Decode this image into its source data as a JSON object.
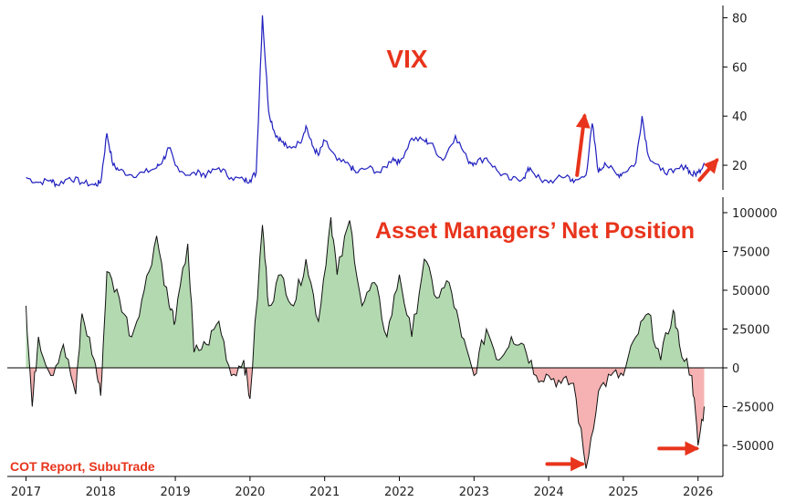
{
  "source": "COT Report, SubuTrade",
  "colors": {
    "vix_line": "#1f1fbf",
    "accent": "#e8341c",
    "positive_fill": "#b3d9b0",
    "negative_fill": "#f6b2b2",
    "net_line": "#111111"
  },
  "chart_data": [
    {
      "type": "line",
      "title": "VIX",
      "x_axis": {
        "range": [
          "2016-10-01",
          "2026-05-01"
        ],
        "tick_labels": [
          "2017",
          "2018",
          "2019",
          "2020",
          "2021",
          "2022",
          "2023",
          "2024",
          "2025",
          "2026"
        ]
      },
      "y_axis": {
        "range": [
          10,
          85
        ],
        "ticks": [
          20,
          40,
          60,
          80
        ],
        "tick_labels": [
          "20",
          "40",
          "60",
          "80"
        ],
        "position": "right"
      },
      "series": [
        {
          "x": [
            "2017-01",
            "2017-03",
            "2017-05",
            "2017-06",
            "2017-08",
            "2017-10",
            "2017-12",
            "2018-01",
            "2018-02",
            "2018-03",
            "2018-04",
            "2018-06",
            "2018-08",
            "2018-10",
            "2018-11",
            "2018-12",
            "2019-01",
            "2019-03",
            "2019-05",
            "2019-06",
            "2019-08",
            "2019-10",
            "2019-12",
            "2020-01",
            "2020-02",
            "2020-03",
            "2020-04",
            "2020-05",
            "2020-06",
            "2020-07",
            "2020-09",
            "2020-10",
            "2020-11",
            "2020-12",
            "2021-01",
            "2021-03",
            "2021-05",
            "2021-06",
            "2021-08",
            "2021-10",
            "2021-12",
            "2022-01",
            "2022-03",
            "2022-05",
            "2022-06",
            "2022-08",
            "2022-10",
            "2022-12",
            "2023-01",
            "2023-03",
            "2023-05",
            "2023-07",
            "2023-09",
            "2023-10",
            "2023-12",
            "2024-02",
            "2024-04",
            "2024-05",
            "2024-07",
            "2024-08",
            "2024-09",
            "2024-10",
            "2024-12",
            "2025-01",
            "2025-03",
            "2025-04",
            "2025-05",
            "2025-07",
            "2025-09",
            "2025-11",
            "2025-12",
            "2026-01",
            "2026-02"
          ],
          "y": [
            15,
            13,
            14,
            12,
            15,
            13,
            12,
            13,
            33,
            20,
            18,
            16,
            17,
            19,
            22,
            27,
            20,
            16,
            17,
            16,
            19,
            15,
            14,
            14,
            17,
            81,
            42,
            33,
            30,
            27,
            29,
            36,
            28,
            24,
            30,
            22,
            20,
            17,
            19,
            17,
            23,
            21,
            31,
            30,
            29,
            22,
            32,
            22,
            21,
            23,
            17,
            14,
            15,
            19,
            13,
            14,
            16,
            13,
            16,
            37,
            17,
            21,
            16,
            17,
            21,
            40,
            24,
            18,
            17,
            20,
            16,
            17,
            21
          ]
        }
      ]
    },
    {
      "type": "area",
      "title": "Asset Managers’ Net Position",
      "x_axis": {
        "range": [
          "2016-10-01",
          "2026-05-01"
        ],
        "tick_labels": [
          "2017",
          "2018",
          "2019",
          "2020",
          "2021",
          "2022",
          "2023",
          "2024",
          "2025",
          "2026"
        ]
      },
      "y_axis": {
        "range": [
          -70000,
          110000
        ],
        "ticks": [
          100000,
          75000,
          50000,
          25000,
          0,
          -25000,
          -50000
        ],
        "tick_labels": [
          "100000",
          "75000",
          "50000",
          "25000",
          "0",
          "-25000",
          "-50000"
        ],
        "position": "right"
      },
      "series": [
        {
          "x": [
            "2017-01",
            "2017-02",
            "2017-03",
            "2017-05",
            "2017-07",
            "2017-09",
            "2017-10",
            "2017-12",
            "2018-01",
            "2018-02",
            "2018-04",
            "2018-06",
            "2018-08",
            "2018-10",
            "2018-12",
            "2019-01",
            "2019-03",
            "2019-04",
            "2019-06",
            "2019-08",
            "2019-10",
            "2019-12",
            "2020-01",
            "2020-03",
            "2020-04",
            "2020-06",
            "2020-08",
            "2020-10",
            "2020-12",
            "2021-02",
            "2021-03",
            "2021-05",
            "2021-07",
            "2021-09",
            "2021-11",
            "2022-01",
            "2022-03",
            "2022-05",
            "2022-07",
            "2022-09",
            "2022-11",
            "2023-01",
            "2023-03",
            "2023-05",
            "2023-07",
            "2023-09",
            "2023-11",
            "2024-01",
            "2024-03",
            "2024-05",
            "2024-07",
            "2024-09",
            "2024-11",
            "2025-01",
            "2025-03",
            "2025-05",
            "2025-07",
            "2025-09",
            "2025-10",
            "2025-12",
            "2026-01",
            "2026-02"
          ],
          "y": [
            40000,
            -25000,
            20000,
            -5000,
            15000,
            -17000,
            35000,
            5000,
            -18000,
            62000,
            45000,
            20000,
            50000,
            85000,
            40000,
            30000,
            80000,
            10000,
            15000,
            30000,
            -5000,
            5000,
            -20000,
            92000,
            40000,
            60000,
            40000,
            70000,
            30000,
            97000,
            60000,
            95000,
            40000,
            55000,
            20000,
            60000,
            20000,
            70000,
            45000,
            55000,
            20000,
            -5000,
            25000,
            5000,
            20000,
            15000,
            -5000,
            -5000,
            -10000,
            -10000,
            -65000,
            -15000,
            -5000,
            -5000,
            20000,
            35000,
            5000,
            37000,
            15000,
            -5000,
            -50000,
            -25000
          ]
        }
      ]
    }
  ]
}
